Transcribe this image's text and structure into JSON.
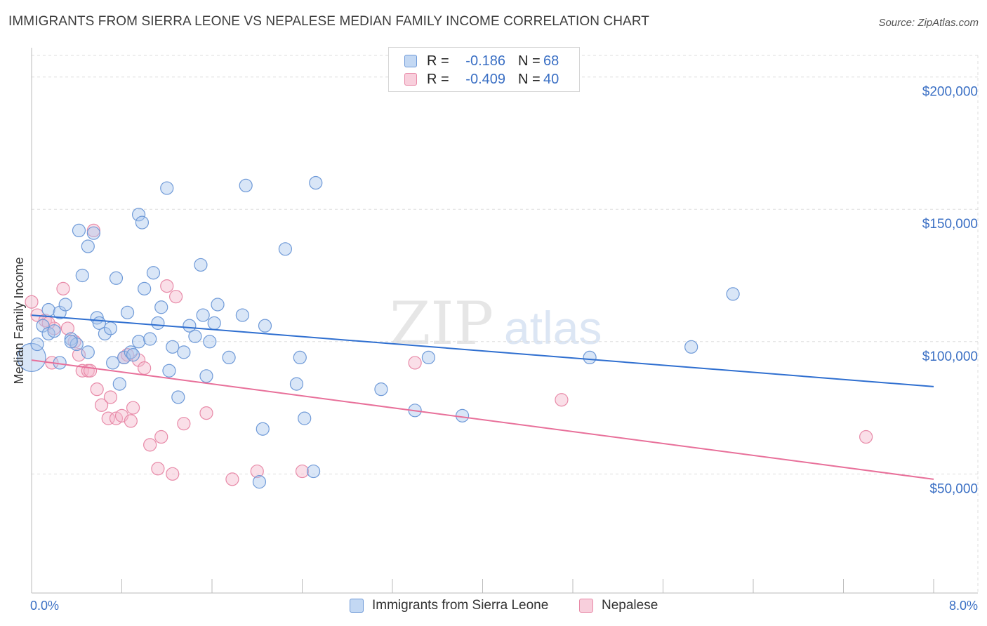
{
  "title": "IMMIGRANTS FROM SIERRA LEONE VS NEPALESE MEDIAN FAMILY INCOME CORRELATION CHART",
  "source": "Source: ZipAtlas.com",
  "watermark": {
    "zip": "ZIP",
    "atlas": "atlas"
  },
  "colors": {
    "blue_fill": "#aac8ee",
    "blue_stroke": "#6f9ad8",
    "blue_line": "#2f6fd0",
    "pink_fill": "#f5b9cc",
    "pink_stroke": "#e88aa8",
    "pink_line": "#e8709a",
    "tick_label": "#3a6fc4",
    "grid": "#dddddd"
  },
  "legend": {
    "rows": [
      {
        "r_label": "R =",
        "r_value": "-0.186",
        "n_label": "N =",
        "n_value": "68",
        "color": "blue"
      },
      {
        "r_label": "R =",
        "r_value": "-0.409",
        "n_label": "N =",
        "n_value": "40",
        "color": "pink"
      }
    ]
  },
  "bottom_legend": [
    "Immigrants from Sierra Leone",
    "Nepalese"
  ],
  "chart_data": {
    "type": "scatter",
    "title": "IMMIGRANTS FROM SIERRA LEONE VS NEPALESE MEDIAN FAMILY INCOME CORRELATION CHART",
    "xlabel": "",
    "ylabel": "Median Family Income",
    "xlim": [
      0.0,
      8.0
    ],
    "ylim": [
      5000,
      210000
    ],
    "x_tick_labels": [
      "0.0%",
      "8.0%"
    ],
    "y_ticks": [
      50000,
      100000,
      150000,
      200000
    ],
    "y_tick_labels": [
      "$50,000",
      "$100,000",
      "$150,000",
      "$200,000"
    ],
    "grid": true,
    "legend_position": "top-center",
    "series": [
      {
        "name": "Immigrants from Sierra Leone",
        "color": "blue",
        "r": -0.186,
        "n": 68,
        "trend": {
          "x": [
            0.0,
            8.0
          ],
          "y": [
            110000,
            83000
          ]
        },
        "points": [
          [
            0.0,
            94000
          ],
          [
            0.05,
            99000
          ],
          [
            0.1,
            106000
          ],
          [
            0.15,
            112000
          ],
          [
            0.15,
            103000
          ],
          [
            0.2,
            104000
          ],
          [
            0.25,
            111000
          ],
          [
            0.3,
            114000
          ],
          [
            0.25,
            92000
          ],
          [
            0.35,
            101000
          ],
          [
            0.4,
            99000
          ],
          [
            0.42,
            142000
          ],
          [
            0.45,
            125000
          ],
          [
            0.5,
            136000
          ],
          [
            0.5,
            96000
          ],
          [
            0.55,
            141000
          ],
          [
            0.58,
            109000
          ],
          [
            0.6,
            107000
          ],
          [
            0.65,
            103000
          ],
          [
            0.7,
            105000
          ],
          [
            0.72,
            92000
          ],
          [
            0.75,
            124000
          ],
          [
            0.78,
            84000
          ],
          [
            0.82,
            94000
          ],
          [
            0.85,
            111000
          ],
          [
            0.88,
            96000
          ],
          [
            0.9,
            95000
          ],
          [
            0.95,
            148000
          ],
          [
            0.95,
            100000
          ],
          [
            0.98,
            145000
          ],
          [
            1.0,
            120000
          ],
          [
            1.05,
            101000
          ],
          [
            1.08,
            126000
          ],
          [
            1.12,
            107000
          ],
          [
            1.15,
            113000
          ],
          [
            1.2,
            158000
          ],
          [
            1.22,
            89000
          ],
          [
            1.25,
            98000
          ],
          [
            1.3,
            79000
          ],
          [
            1.35,
            96000
          ],
          [
            1.4,
            106000
          ],
          [
            1.45,
            102000
          ],
          [
            1.5,
            129000
          ],
          [
            1.52,
            110000
          ],
          [
            1.55,
            87000
          ],
          [
            1.58,
            100000
          ],
          [
            1.62,
            107000
          ],
          [
            1.65,
            114000
          ],
          [
            1.75,
            94000
          ],
          [
            1.87,
            110000
          ],
          [
            1.9,
            159000
          ],
          [
            2.02,
            47000
          ],
          [
            2.05,
            67000
          ],
          [
            2.07,
            106000
          ],
          [
            2.25,
            135000
          ],
          [
            2.35,
            84000
          ],
          [
            2.38,
            94000
          ],
          [
            2.42,
            71000
          ],
          [
            2.5,
            51000
          ],
          [
            2.52,
            160000
          ],
          [
            3.1,
            82000
          ],
          [
            3.4,
            74000
          ],
          [
            3.52,
            94000
          ],
          [
            3.82,
            72000
          ],
          [
            4.95,
            94000
          ],
          [
            5.85,
            98000
          ],
          [
            6.22,
            118000
          ],
          [
            0.35,
            100000
          ]
        ]
      },
      {
        "name": "Nepalese",
        "color": "pink",
        "r": -0.409,
        "n": 40,
        "trend": {
          "x": [
            0.0,
            8.0
          ],
          "y": [
            93000,
            48000
          ]
        },
        "points": [
          [
            0.0,
            115000
          ],
          [
            0.05,
            110000
          ],
          [
            0.12,
            108000
          ],
          [
            0.18,
            92000
          ],
          [
            0.2,
            105000
          ],
          [
            0.28,
            120000
          ],
          [
            0.32,
            105000
          ],
          [
            0.38,
            100000
          ],
          [
            0.42,
            95000
          ],
          [
            0.45,
            89000
          ],
          [
            0.5,
            89000
          ],
          [
            0.52,
            89000
          ],
          [
            0.55,
            142000
          ],
          [
            0.58,
            82000
          ],
          [
            0.62,
            76000
          ],
          [
            0.68,
            71000
          ],
          [
            0.7,
            79000
          ],
          [
            0.75,
            71000
          ],
          [
            0.8,
            72000
          ],
          [
            0.82,
            94000
          ],
          [
            0.85,
            95000
          ],
          [
            0.88,
            70000
          ],
          [
            0.9,
            75000
          ],
          [
            0.95,
            93000
          ],
          [
            1.0,
            90000
          ],
          [
            1.05,
            61000
          ],
          [
            1.12,
            52000
          ],
          [
            1.15,
            64000
          ],
          [
            1.2,
            121000
          ],
          [
            1.25,
            50000
          ],
          [
            1.28,
            117000
          ],
          [
            1.35,
            69000
          ],
          [
            1.55,
            73000
          ],
          [
            1.78,
            48000
          ],
          [
            2.0,
            51000
          ],
          [
            2.4,
            51000
          ],
          [
            3.4,
            92000
          ],
          [
            4.7,
            78000
          ],
          [
            7.4,
            64000
          ],
          [
            0.15,
            107000
          ]
        ]
      }
    ]
  }
}
